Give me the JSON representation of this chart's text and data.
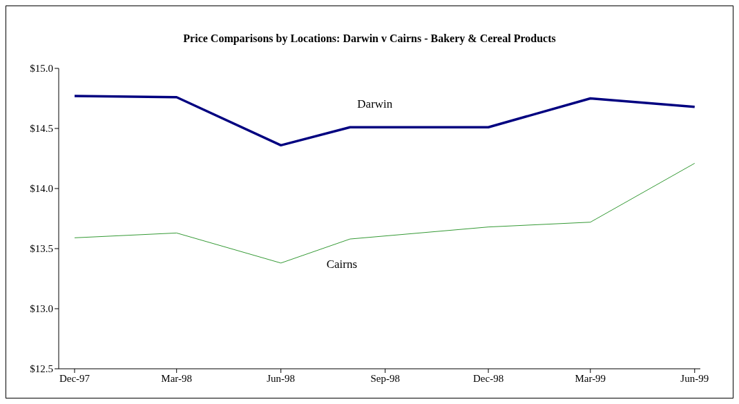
{
  "chart_data": {
    "type": "line",
    "title": "Price Comparisons by Locations: Darwin v Cairns - Bakery & Cereal Products",
    "x": [
      "1997-12-15",
      "1998-03-15",
      "1998-06-15",
      "1998-08-15",
      "1998-12-15",
      "1999-03-15",
      "1999-06-15"
    ],
    "series": [
      {
        "name": "Darwin",
        "color": "#000080",
        "values": [
          14.77,
          14.76,
          14.36,
          14.51,
          14.51,
          14.75,
          14.68
        ]
      },
      {
        "name": "Cairns",
        "color": "#339933",
        "values": [
          13.59,
          13.63,
          13.38,
          13.58,
          13.68,
          13.72,
          14.21
        ]
      }
    ],
    "xlim": [
      "1997-12-01",
      "1999-06-20"
    ],
    "xticks": [
      {
        "value": "1997-12-15",
        "label": "Dec-97"
      },
      {
        "value": "1998-03-15",
        "label": "Mar-98"
      },
      {
        "value": "1998-06-15",
        "label": "Jun-98"
      },
      {
        "value": "1998-09-15",
        "label": "Sep-98"
      },
      {
        "value": "1998-12-15",
        "label": "Dec-98"
      },
      {
        "value": "1999-03-15",
        "label": "Mar-99"
      },
      {
        "value": "1999-06-15",
        "label": "Jun-99"
      }
    ],
    "ylim": [
      12.5,
      15
    ],
    "yticks": [
      {
        "value": 12.5,
        "label": "$12.5"
      },
      {
        "value": 13,
        "label": "$13.0"
      },
      {
        "value": 13.5,
        "label": "$13.5"
      },
      {
        "value": 14,
        "label": "$14.0"
      },
      {
        "value": 14.5,
        "label": "$14.5"
      },
      {
        "value": 15,
        "label": "$15.0"
      }
    ],
    "grid": false,
    "legend": false,
    "marker": "none",
    "line_style": "solid"
  }
}
